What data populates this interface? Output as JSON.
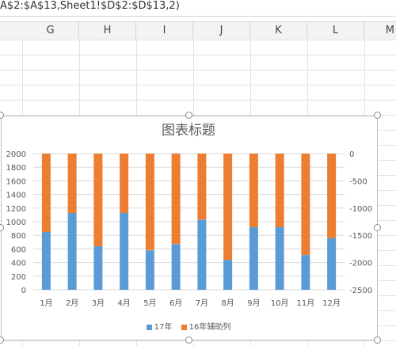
{
  "formula_bar": {
    "text": "A$2:$A$13,Sheet1!$D$2:$D$13,2)"
  },
  "columns": [
    "G",
    "H",
    "I",
    "J",
    "K",
    "L",
    "M"
  ],
  "colors": {
    "series_17": "#5b9bd5",
    "series_16": "#ed7d31",
    "grid": "#d9d9d9",
    "axis_text": "#595959"
  },
  "chart": {
    "title": "图表标题",
    "legend": [
      {
        "label": "17年",
        "color": "#5b9bd5"
      },
      {
        "label": "16年辅助列",
        "color": "#ed7d31"
      }
    ]
  },
  "chart_data": {
    "type": "bar",
    "stacked": true,
    "title": "图表标题",
    "categories": [
      "1月",
      "2月",
      "3月",
      "4月",
      "5月",
      "6月",
      "7月",
      "8月",
      "9月",
      "10月",
      "11月",
      "12月"
    ],
    "series": [
      {
        "name": "17年",
        "axis": "left",
        "values": [
          870,
          1140,
          640,
          1140,
          580,
          670,
          1030,
          440,
          920,
          920,
          510,
          760
        ]
      },
      {
        "name": "16年辅助列",
        "axis": "right",
        "values": [
          -1440,
          -1090,
          -1700,
          -1090,
          -1770,
          -1660,
          -1210,
          -1950,
          -1350,
          -1350,
          -1860,
          -1550
        ]
      }
    ],
    "y_left": {
      "min": 0,
      "max": 2000,
      "ticks": [
        "0",
        "200",
        "400",
        "600",
        "800",
        "1000",
        "1200",
        "1400",
        "1600",
        "1800",
        "2000"
      ]
    },
    "y_right": {
      "min": -2500,
      "max": 0,
      "ticks": [
        "0",
        "-500",
        "-1000",
        "-1500",
        "-2000",
        "-2500"
      ]
    },
    "grid": true,
    "legend_position": "bottom"
  }
}
